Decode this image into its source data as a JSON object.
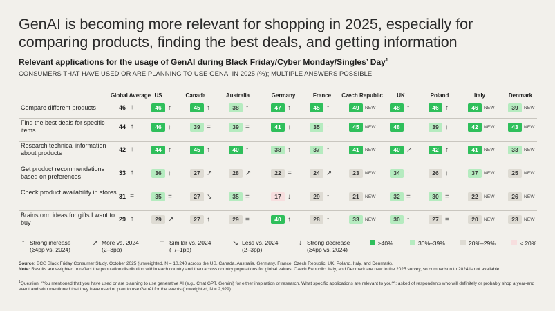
{
  "title": "GenAI is becoming more relevant for shopping in 2025, especially for comparing products, finding the best deals, and getting information",
  "subtitle": "Relevant applications for the usage of GenAI during Black Friday/Cyber Monday/Singles’ Day",
  "subtitle_sup": "1",
  "description": "CONSUMERS THAT HAVE USED OR ARE PLANNING TO USE GENAI IN 2025 (%); MULTIPLE ANSWERS POSSIBLE",
  "colors": {
    "dark_green": "#2fbf5b",
    "light_green": "#b5ebbf",
    "grey": "#dedbd3",
    "pink": "#f7dede",
    "background": "#f2f0eb"
  },
  "legend": {
    "strong_increase": "Strong increase",
    "strong_increase_sub": "(≥4pp vs. 2024)",
    "more": "More vs. 2024",
    "more_sub": "(2–3pp)",
    "similar": "Similar vs. 2024",
    "similar_sub": "(+/–1pp)",
    "less": "Less vs. 2024",
    "less_sub": "(2–3pp)",
    "strong_decrease": "Strong decrease",
    "strong_decrease_sub": "(≥4pp vs. 2024)",
    "bin_ge40": "≥40%",
    "bin_30_39": "30%–39%",
    "bin_20_29": "20%–29%",
    "bin_lt20": "< 20%"
  },
  "footnotes": {
    "source": "BCG Black Friday Consumer Study, October 2025 (unweighted, N = 10,240 across the US, Canada, Australia, Germany, France, Czech Republic, UK, Poland, Italy, and Denmark).",
    "note": "Results are weighted to reflect the population distribution within each country and then across country populations for global values. Czech Republic, Italy, and Denmark are new to the 2025 survey, so comparison to 2024 is not available.",
    "question": "Question: “You mentioned that you have used or are planning to use generative AI (e.g., Chat GPT, Gemini) for either inspiration or research. What specific applications are relevant to you?”; asked of respondents who will definitely or probably shop a year-end event and who mentioned that they have used or plan to use GenAI for the events (unweighted, N = 2,929).",
    "source_label": "Source:",
    "note_label": "Note:",
    "question_sup": "1"
  },
  "new_label": "NEW",
  "chart_data": {
    "type": "table",
    "columns": [
      "Global Average",
      "US",
      "Canada",
      "Australia",
      "Germany",
      "France",
      "Czech Republic",
      "UK",
      "Poland",
      "Italy",
      "Denmark"
    ],
    "trend_symbols": {
      "strong_increase": "↑",
      "more": "↗",
      "similar": "=",
      "less": "↘",
      "strong_decrease": "↓"
    },
    "rows": [
      {
        "label": "Compare different products",
        "global": {
          "value": 46,
          "trend": "strong_increase"
        },
        "countries": [
          {
            "value": 46,
            "trend": "strong_increase"
          },
          {
            "value": 45,
            "trend": "strong_increase"
          },
          {
            "value": 38,
            "trend": "strong_increase"
          },
          {
            "value": 47,
            "trend": "strong_increase"
          },
          {
            "value": 45,
            "trend": "strong_increase"
          },
          {
            "value": 49,
            "trend": "new"
          },
          {
            "value": 48,
            "trend": "strong_increase"
          },
          {
            "value": 46,
            "trend": "strong_increase"
          },
          {
            "value": 46,
            "trend": "new"
          },
          {
            "value": 39,
            "trend": "new"
          }
        ]
      },
      {
        "label": "Find the best deals for specific items",
        "global": {
          "value": 44,
          "trend": "strong_increase"
        },
        "countries": [
          {
            "value": 46,
            "trend": "strong_increase"
          },
          {
            "value": 39,
            "trend": "similar"
          },
          {
            "value": 39,
            "trend": "similar"
          },
          {
            "value": 41,
            "trend": "strong_increase"
          },
          {
            "value": 35,
            "trend": "strong_increase"
          },
          {
            "value": 45,
            "trend": "new"
          },
          {
            "value": 48,
            "trend": "strong_increase"
          },
          {
            "value": 39,
            "trend": "strong_increase"
          },
          {
            "value": 42,
            "trend": "new"
          },
          {
            "value": 43,
            "trend": "new"
          }
        ]
      },
      {
        "label": "Research technical information about products",
        "global": {
          "value": 42,
          "trend": "strong_increase"
        },
        "countries": [
          {
            "value": 44,
            "trend": "strong_increase"
          },
          {
            "value": 45,
            "trend": "strong_increase"
          },
          {
            "value": 40,
            "trend": "strong_increase"
          },
          {
            "value": 38,
            "trend": "strong_increase"
          },
          {
            "value": 37,
            "trend": "strong_increase"
          },
          {
            "value": 41,
            "trend": "new"
          },
          {
            "value": 40,
            "trend": "more"
          },
          {
            "value": 42,
            "trend": "strong_increase"
          },
          {
            "value": 41,
            "trend": "new"
          },
          {
            "value": 33,
            "trend": "new"
          }
        ]
      },
      {
        "label": "Get product recommendations based on preferences",
        "global": {
          "value": 33,
          "trend": "strong_increase"
        },
        "countries": [
          {
            "value": 36,
            "trend": "strong_increase"
          },
          {
            "value": 27,
            "trend": "more"
          },
          {
            "value": 28,
            "trend": "more"
          },
          {
            "value": 22,
            "trend": "similar"
          },
          {
            "value": 24,
            "trend": "more"
          },
          {
            "value": 23,
            "trend": "new"
          },
          {
            "value": 34,
            "trend": "strong_increase"
          },
          {
            "value": 26,
            "trend": "strong_increase"
          },
          {
            "value": 37,
            "trend": "new"
          },
          {
            "value": 25,
            "trend": "new"
          }
        ]
      },
      {
        "label": "Check product availability in stores",
        "global": {
          "value": 31,
          "trend": "similar"
        },
        "countries": [
          {
            "value": 35,
            "trend": "similar"
          },
          {
            "value": 27,
            "trend": "less"
          },
          {
            "value": 35,
            "trend": "similar"
          },
          {
            "value": 17,
            "trend": "strong_decrease"
          },
          {
            "value": 29,
            "trend": "strong_increase"
          },
          {
            "value": 21,
            "trend": "new"
          },
          {
            "value": 32,
            "trend": "similar"
          },
          {
            "value": 30,
            "trend": "similar"
          },
          {
            "value": 22,
            "trend": "new"
          },
          {
            "value": 26,
            "trend": "new"
          }
        ]
      },
      {
        "label": "Brainstorm ideas for gifts I want to buy",
        "global": {
          "value": 29,
          "trend": "strong_increase"
        },
        "countries": [
          {
            "value": 29,
            "trend": "more"
          },
          {
            "value": 27,
            "trend": "strong_increase"
          },
          {
            "value": 29,
            "trend": "similar"
          },
          {
            "value": 40,
            "trend": "strong_increase"
          },
          {
            "value": 28,
            "trend": "strong_increase"
          },
          {
            "value": 33,
            "trend": "new"
          },
          {
            "value": 30,
            "trend": "strong_increase"
          },
          {
            "value": 27,
            "trend": "similar"
          },
          {
            "value": 20,
            "trend": "new"
          },
          {
            "value": 23,
            "trend": "new"
          }
        ]
      }
    ]
  }
}
